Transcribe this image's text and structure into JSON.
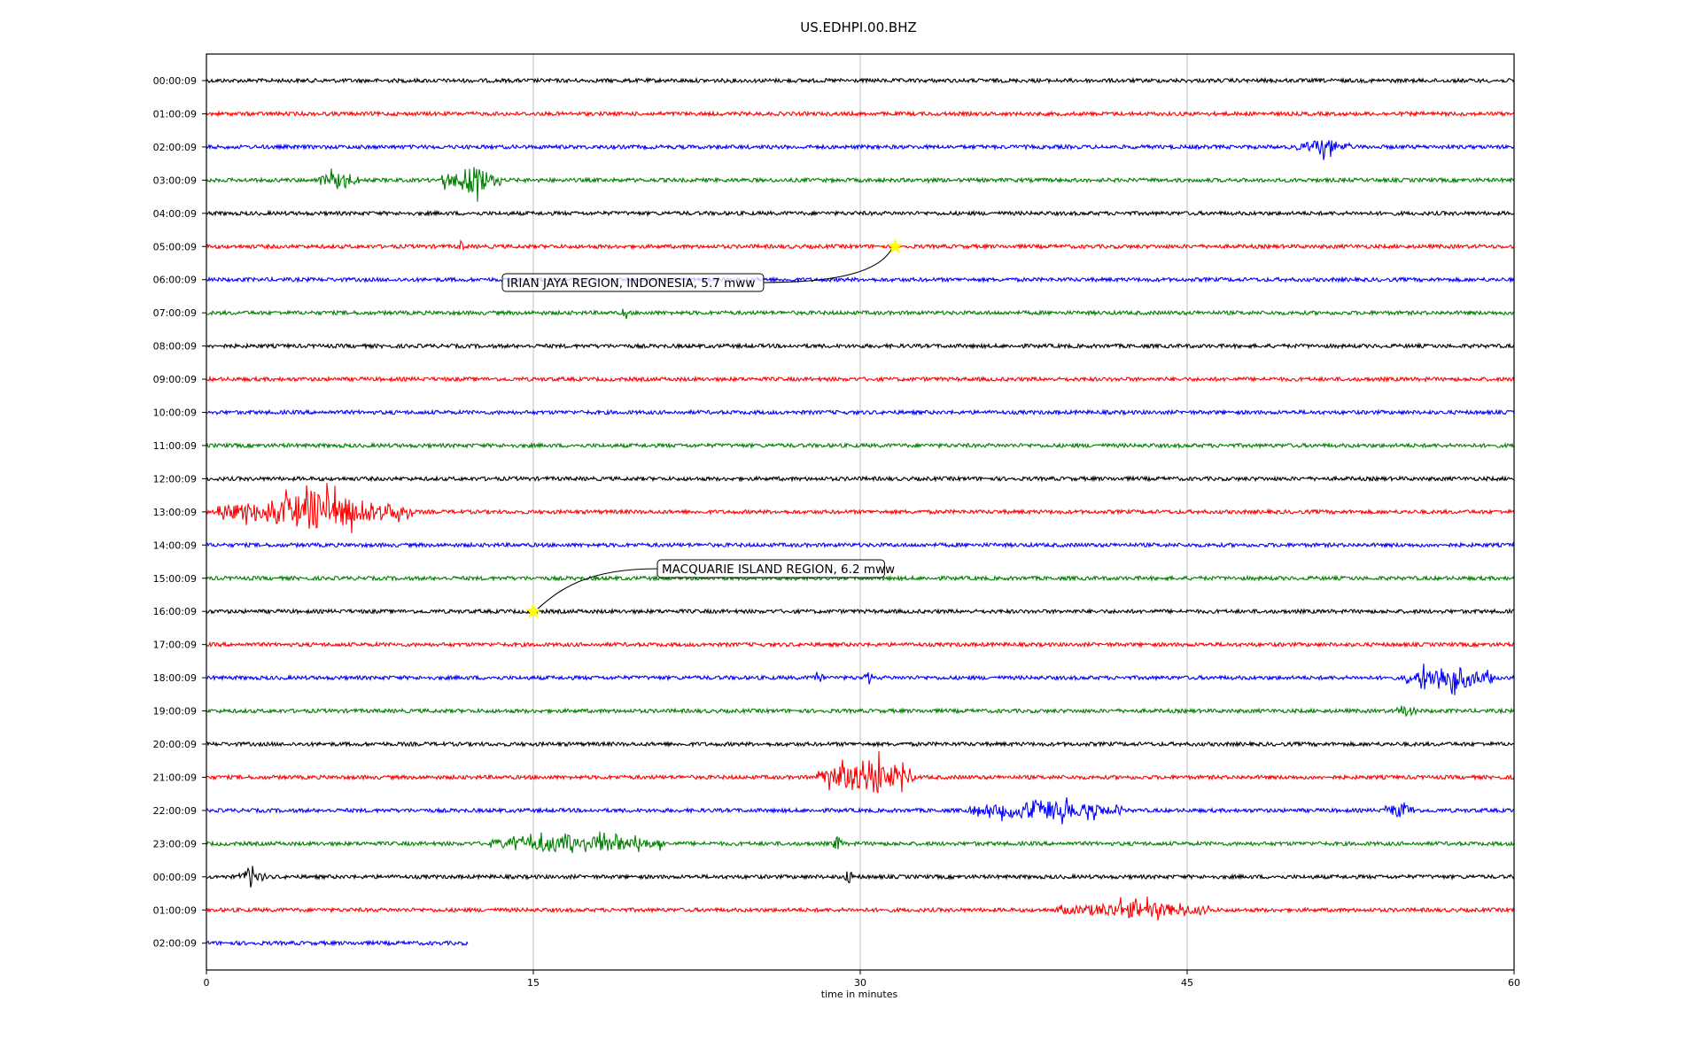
{
  "chart_data": {
    "type": "line",
    "title": "US.EDHPI.00.BHZ",
    "xlabel": "time in minutes",
    "ylabel": "",
    "xlim": [
      0,
      60
    ],
    "x_ticks": [
      "0",
      "15",
      "30",
      "45",
      "60"
    ],
    "x_tick_values": [
      0,
      15,
      30,
      45,
      60
    ],
    "grid": "vertical gridlines at x ticks",
    "row_colors": [
      "#000000",
      "#ff0000",
      "#0000ff",
      "#008000"
    ],
    "row_labels": [
      "00:00:09",
      "01:00:09",
      "02:00:09",
      "03:00:09",
      "04:00:09",
      "05:00:09",
      "06:00:09",
      "07:00:09",
      "08:00:09",
      "09:00:09",
      "10:00:09",
      "11:00:09",
      "12:00:09",
      "13:00:09",
      "14:00:09",
      "15:00:09",
      "16:00:09",
      "17:00:09",
      "18:00:09",
      "19:00:09",
      "20:00:09",
      "21:00:09",
      "22:00:09",
      "23:00:09",
      "00:00:09",
      "01:00:09",
      "02:00:09"
    ],
    "last_row_end_minute": 12,
    "bursts": [
      {
        "row": 2,
        "start": 50,
        "end": 52.5,
        "amp": 1.8
      },
      {
        "row": 3,
        "start": 5,
        "end": 7,
        "amp": 1.6
      },
      {
        "row": 3,
        "start": 10.8,
        "end": 13.5,
        "amp": 3.5
      },
      {
        "row": 3,
        "start": 33,
        "end": 33.3,
        "amp": 1.2
      },
      {
        "row": 5,
        "start": 11.6,
        "end": 11.8,
        "amp": 1.5
      },
      {
        "row": 7,
        "start": 19.1,
        "end": 19.3,
        "amp": 1.4
      },
      {
        "row": 13,
        "start": 0.5,
        "end": 9.5,
        "amp": 4.5
      },
      {
        "row": 18,
        "start": 27.8,
        "end": 28.3,
        "amp": 1.4
      },
      {
        "row": 18,
        "start": 30.2,
        "end": 30.6,
        "amp": 1.2
      },
      {
        "row": 18,
        "start": 55,
        "end": 59,
        "amp": 3.2
      },
      {
        "row": 19,
        "start": 54.5,
        "end": 55.5,
        "amp": 1.2
      },
      {
        "row": 21,
        "start": 28,
        "end": 32.5,
        "amp": 4.5
      },
      {
        "row": 22,
        "start": 35,
        "end": 42,
        "amp": 2.2
      },
      {
        "row": 22,
        "start": 54,
        "end": 55.5,
        "amp": 1.5
      },
      {
        "row": 23,
        "start": 13,
        "end": 21,
        "amp": 2.2
      },
      {
        "row": 23,
        "start": 28.7,
        "end": 29.2,
        "amp": 1.8
      },
      {
        "row": 24,
        "start": 1.5,
        "end": 2.7,
        "amp": 1.6
      },
      {
        "row": 24,
        "start": 29.2,
        "end": 29.7,
        "amp": 1.6
      },
      {
        "row": 25,
        "start": 39,
        "end": 46,
        "amp": 1.8
      }
    ],
    "events": [
      {
        "label": "IRIAN JAYA REGION, INDONESIA, 5.7 mww",
        "row": 5,
        "minute": 31.6,
        "marker": "star",
        "marker_color": "#ffff00"
      },
      {
        "label": "MACQUARIE ISLAND REGION, 6.2 mww",
        "row": 16,
        "minute": 15,
        "marker": "star",
        "marker_color": "#ffff00"
      }
    ]
  }
}
